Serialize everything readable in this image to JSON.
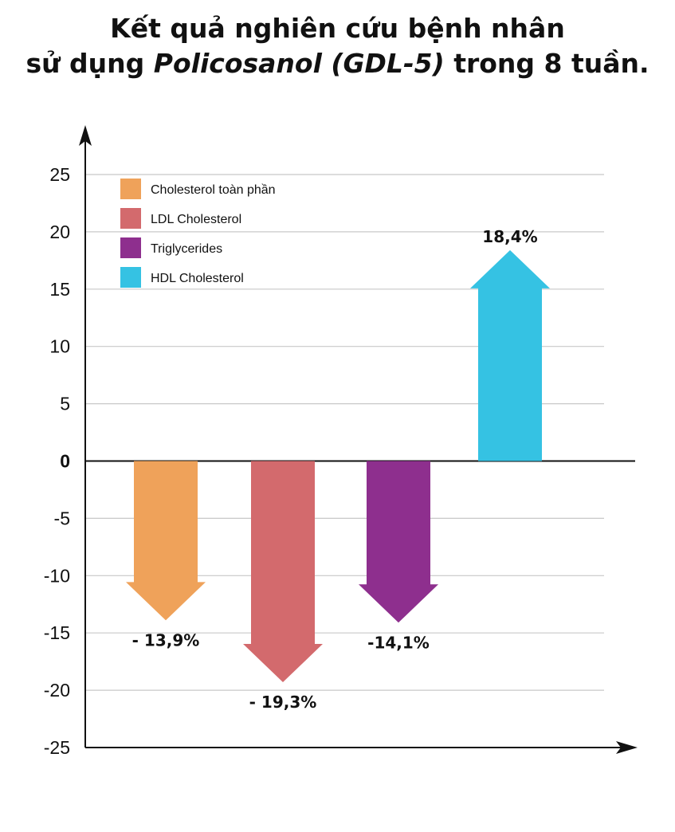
{
  "title": {
    "line1": "Kết quả nghiên cứu bệnh nhân",
    "line2_before": "sử dụng ",
    "line2_italic": "Policosanol (GDL-5)",
    "line2_after": " trong 8 tuần."
  },
  "chart_data": {
    "type": "bar",
    "title": "Kết quả nghiên cứu bệnh nhân sử dụng Policosanol (GDL-5) trong 8 tuần.",
    "categories": [
      "Cholesterol toàn phần",
      "LDL Cholesterol",
      "Triglycerides",
      "HDL Cholesterol"
    ],
    "values": [
      -13.9,
      -19.3,
      -14.1,
      18.4
    ],
    "value_labels": [
      "- 13,9%",
      "- 19,3%",
      "-14,1%",
      "18,4%"
    ],
    "colors": [
      "#EFA25A",
      "#D36A6D",
      "#8E2F8E",
      "#35C2E3"
    ],
    "ylim": [
      -25,
      25
    ],
    "yticks": [
      25,
      20,
      15,
      10,
      5,
      0,
      -5,
      -10,
      -15,
      -20,
      -25
    ],
    "grid": true,
    "legend": "top-left",
    "bar_style": "arrow"
  }
}
